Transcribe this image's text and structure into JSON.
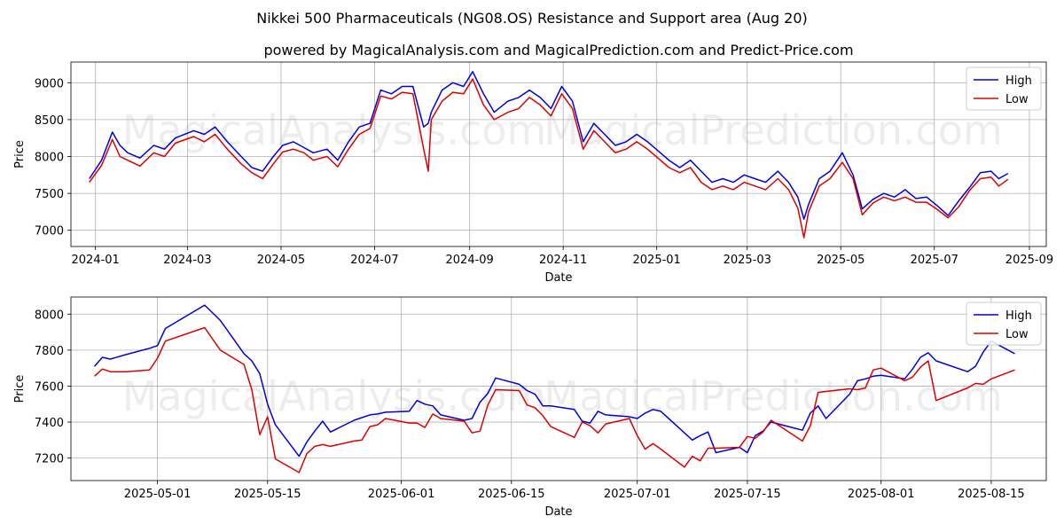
{
  "title": "Nikkei 500 Pharmaceuticals (NG08.OS) Resistance and Support area (Aug 20)",
  "subtitle": "powered by MagicalAnalysis.com and MagicalPrediction.com and Predict-Price.com",
  "watermarks": [
    "MagicalAnalysis.com",
    "MagicalPrediction.com"
  ],
  "colors": {
    "high": "#0000dd",
    "low": "#dd0000"
  },
  "chart_data": [
    {
      "type": "line",
      "xlabel": "Date",
      "ylabel": "Price",
      "xlim": [
        "2023-12-16",
        "2025-09-12"
      ],
      "ylim": [
        6780,
        9280
      ],
      "x_ticks": [
        "2024-01",
        "2024-03",
        "2024-05",
        "2024-07",
        "2024-09",
        "2024-11",
        "2025-01",
        "2025-03",
        "2025-05",
        "2025-07",
        "2025-09"
      ],
      "x_tick_dates": [
        "2024-01-01",
        "2024-03-01",
        "2024-05-01",
        "2024-07-01",
        "2024-09-01",
        "2024-11-01",
        "2025-01-01",
        "2025-03-01",
        "2025-05-01",
        "2025-07-01",
        "2025-09-01"
      ],
      "y_ticks": [
        7000,
        7500,
        8000,
        8500,
        9000
      ],
      "grid": true,
      "legend": "top-right",
      "series": [
        {
          "name": "High",
          "x": [
            "2023-12-28",
            "2024-01-05",
            "2024-01-12",
            "2024-01-17",
            "2024-01-22",
            "2024-01-30",
            "2024-02-08",
            "2024-02-15",
            "2024-02-22",
            "2024-03-05",
            "2024-03-12",
            "2024-03-19",
            "2024-03-27",
            "2024-04-05",
            "2024-04-12",
            "2024-04-19",
            "2024-04-26",
            "2024-05-02",
            "2024-05-09",
            "2024-05-16",
            "2024-05-22",
            "2024-05-31",
            "2024-06-07",
            "2024-06-14",
            "2024-06-21",
            "2024-06-28",
            "2024-07-05",
            "2024-07-12",
            "2024-07-19",
            "2024-07-26",
            "2024-08-02",
            "2024-08-05",
            "2024-08-07",
            "2024-08-14",
            "2024-08-21",
            "2024-08-28",
            "2024-09-03",
            "2024-09-10",
            "2024-09-17",
            "2024-09-26",
            "2024-10-03",
            "2024-10-10",
            "2024-10-17",
            "2024-10-24",
            "2024-10-31",
            "2024-11-07",
            "2024-11-14",
            "2024-11-21",
            "2024-11-28",
            "2024-12-05",
            "2024-12-12",
            "2024-12-19",
            "2024-12-26",
            "2025-01-09",
            "2025-01-16",
            "2025-01-23",
            "2025-01-30",
            "2025-02-06",
            "2025-02-13",
            "2025-02-20",
            "2025-02-27",
            "2025-03-06",
            "2025-03-13",
            "2025-03-21",
            "2025-03-28",
            "2025-04-03",
            "2025-04-07",
            "2025-04-10",
            "2025-04-17",
            "2025-04-24",
            "2025-05-02",
            "2025-05-09",
            "2025-05-15",
            "2025-05-22",
            "2025-05-29",
            "2025-06-05",
            "2025-06-12",
            "2025-06-19",
            "2025-06-26",
            "2025-07-03",
            "2025-07-10",
            "2025-07-17",
            "2025-07-24",
            "2025-07-31",
            "2025-08-07",
            "2025-08-12",
            "2025-08-18"
          ],
          "values": [
            7700,
            7950,
            8330,
            8150,
            8050,
            7980,
            8150,
            8100,
            8250,
            8350,
            8300,
            8400,
            8200,
            8000,
            7850,
            7800,
            8000,
            8150,
            8200,
            8120,
            8050,
            8100,
            7950,
            8200,
            8400,
            8450,
            8900,
            8850,
            8950,
            8950,
            8400,
            8450,
            8600,
            8900,
            9000,
            8950,
            9150,
            8850,
            8600,
            8750,
            8800,
            8900,
            8800,
            8650,
            8950,
            8750,
            8200,
            8450,
            8300,
            8150,
            8200,
            8300,
            8200,
            7950,
            7850,
            7950,
            7800,
            7650,
            7700,
            7650,
            7750,
            7700,
            7650,
            7800,
            7650,
            7450,
            7150,
            7350,
            7700,
            7800,
            8050,
            7750,
            7290,
            7420,
            7500,
            7450,
            7550,
            7430,
            7450,
            7330,
            7200,
            7400,
            7580,
            7780,
            7800,
            7700,
            7770
          ]
        },
        {
          "name": "Low",
          "x": [
            "2023-12-28",
            "2024-01-05",
            "2024-01-12",
            "2024-01-17",
            "2024-01-22",
            "2024-01-30",
            "2024-02-08",
            "2024-02-15",
            "2024-02-22",
            "2024-03-05",
            "2024-03-12",
            "2024-03-19",
            "2024-03-27",
            "2024-04-05",
            "2024-04-12",
            "2024-04-19",
            "2024-04-26",
            "2024-05-02",
            "2024-05-09",
            "2024-05-16",
            "2024-05-22",
            "2024-05-31",
            "2024-06-07",
            "2024-06-14",
            "2024-06-21",
            "2024-06-28",
            "2024-07-05",
            "2024-07-12",
            "2024-07-19",
            "2024-07-26",
            "2024-08-02",
            "2024-08-05",
            "2024-08-07",
            "2024-08-14",
            "2024-08-21",
            "2024-08-28",
            "2024-09-03",
            "2024-09-10",
            "2024-09-17",
            "2024-09-26",
            "2024-10-03",
            "2024-10-10",
            "2024-10-17",
            "2024-10-24",
            "2024-10-31",
            "2024-11-07",
            "2024-11-14",
            "2024-11-21",
            "2024-11-28",
            "2024-12-05",
            "2024-12-12",
            "2024-12-19",
            "2024-12-26",
            "2025-01-09",
            "2025-01-16",
            "2025-01-23",
            "2025-01-30",
            "2025-02-06",
            "2025-02-13",
            "2025-02-20",
            "2025-02-27",
            "2025-03-06",
            "2025-03-13",
            "2025-03-21",
            "2025-03-28",
            "2025-04-03",
            "2025-04-07",
            "2025-04-10",
            "2025-04-17",
            "2025-04-24",
            "2025-05-02",
            "2025-05-09",
            "2025-05-15",
            "2025-05-22",
            "2025-05-29",
            "2025-06-05",
            "2025-06-12",
            "2025-06-19",
            "2025-06-26",
            "2025-07-03",
            "2025-07-10",
            "2025-07-17",
            "2025-07-24",
            "2025-07-31",
            "2025-08-07",
            "2025-08-12",
            "2025-08-18"
          ],
          "values": [
            7650,
            7880,
            8230,
            8000,
            7950,
            7870,
            8050,
            8000,
            8180,
            8270,
            8200,
            8300,
            8100,
            7900,
            7780,
            7700,
            7900,
            8060,
            8100,
            8050,
            7950,
            8000,
            7860,
            8100,
            8300,
            8380,
            8820,
            8780,
            8870,
            8850,
            8100,
            7800,
            8500,
            8750,
            8870,
            8850,
            9050,
            8700,
            8500,
            8600,
            8650,
            8800,
            8700,
            8550,
            8850,
            8650,
            8100,
            8350,
            8200,
            8050,
            8100,
            8200,
            8100,
            7850,
            7780,
            7850,
            7650,
            7550,
            7600,
            7550,
            7650,
            7600,
            7550,
            7700,
            7550,
            7300,
            6900,
            7250,
            7600,
            7700,
            7920,
            7700,
            7210,
            7370,
            7450,
            7400,
            7450,
            7380,
            7380,
            7280,
            7170,
            7320,
            7540,
            7700,
            7720,
            7600,
            7690
          ]
        }
      ]
    },
    {
      "type": "line",
      "xlabel": "Date",
      "ylabel": "Price",
      "xlim": [
        "2025-04-20",
        "2025-08-22"
      ],
      "ylim": [
        7075,
        8095
      ],
      "x_ticks": [
        "2025-05-01",
        "2025-05-15",
        "2025-06-01",
        "2025-06-15",
        "2025-07-01",
        "2025-07-15",
        "2025-08-01",
        "2025-08-15"
      ],
      "y_ticks": [
        7200,
        7400,
        7600,
        7800,
        8000
      ],
      "grid": true,
      "legend": "top-right",
      "series": [
        {
          "name": "High",
          "x": [
            "2025-04-23",
            "2025-04-24",
            "2025-04-25",
            "2025-04-27",
            "2025-04-30",
            "2025-05-01",
            "2025-05-02",
            "2025-05-07",
            "2025-05-09",
            "2025-05-12",
            "2025-05-13",
            "2025-05-14",
            "2025-05-15",
            "2025-05-16",
            "2025-05-19",
            "2025-05-20",
            "2025-05-21",
            "2025-05-22",
            "2025-05-23",
            "2025-05-26",
            "2025-05-27",
            "2025-05-28",
            "2025-05-29",
            "2025-05-30",
            "2025-06-02",
            "2025-06-03",
            "2025-06-04",
            "2025-06-05",
            "2025-06-06",
            "2025-06-09",
            "2025-06-10",
            "2025-06-11",
            "2025-06-12",
            "2025-06-13",
            "2025-06-16",
            "2025-06-17",
            "2025-06-18",
            "2025-06-19",
            "2025-06-20",
            "2025-06-23",
            "2025-06-24",
            "2025-06-25",
            "2025-06-26",
            "2025-06-27",
            "2025-06-30",
            "2025-07-01",
            "2025-07-02",
            "2025-07-03",
            "2025-07-04",
            "2025-07-07",
            "2025-07-08",
            "2025-07-09",
            "2025-07-10",
            "2025-07-11",
            "2025-07-14",
            "2025-07-15",
            "2025-07-16",
            "2025-07-17",
            "2025-07-18",
            "2025-07-22",
            "2025-07-23",
            "2025-07-24",
            "2025-07-25",
            "2025-07-28",
            "2025-07-29",
            "2025-07-30",
            "2025-07-31",
            "2025-08-01",
            "2025-08-04",
            "2025-08-05",
            "2025-08-06",
            "2025-08-07",
            "2025-08-08",
            "2025-08-12",
            "2025-08-13",
            "2025-08-14",
            "2025-08-15",
            "2025-08-18"
          ],
          "values": [
            7710,
            7760,
            7750,
            7775,
            7810,
            7825,
            7920,
            8050,
            7965,
            7780,
            7740,
            7670,
            7500,
            7385,
            7210,
            7290,
            7350,
            7405,
            7345,
            7410,
            7425,
            7440,
            7445,
            7455,
            7460,
            7520,
            7500,
            7490,
            7440,
            7410,
            7420,
            7510,
            7560,
            7645,
            7610,
            7575,
            7555,
            7490,
            7490,
            7470,
            7405,
            7395,
            7460,
            7440,
            7430,
            7420,
            7450,
            7470,
            7460,
            7340,
            7300,
            7325,
            7345,
            7230,
            7260,
            7230,
            7325,
            7350,
            7400,
            7355,
            7450,
            7490,
            7420,
            7555,
            7630,
            7640,
            7655,
            7660,
            7640,
            7695,
            7760,
            7785,
            7740,
            7680,
            7710,
            7790,
            7850,
            7780
          ]
        },
        {
          "name": "Low",
          "x": [
            "2025-04-23",
            "2025-04-24",
            "2025-04-25",
            "2025-04-27",
            "2025-04-30",
            "2025-05-01",
            "2025-05-02",
            "2025-05-07",
            "2025-05-09",
            "2025-05-12",
            "2025-05-13",
            "2025-05-14",
            "2025-05-15",
            "2025-05-16",
            "2025-05-19",
            "2025-05-20",
            "2025-05-21",
            "2025-05-22",
            "2025-05-23",
            "2025-05-26",
            "2025-05-27",
            "2025-05-28",
            "2025-05-29",
            "2025-05-30",
            "2025-06-02",
            "2025-06-03",
            "2025-06-04",
            "2025-06-05",
            "2025-06-06",
            "2025-06-09",
            "2025-06-10",
            "2025-06-11",
            "2025-06-12",
            "2025-06-13",
            "2025-06-16",
            "2025-06-17",
            "2025-06-18",
            "2025-06-19",
            "2025-06-20",
            "2025-06-23",
            "2025-06-24",
            "2025-06-25",
            "2025-06-26",
            "2025-06-27",
            "2025-06-30",
            "2025-07-01",
            "2025-07-02",
            "2025-07-03",
            "2025-07-04",
            "2025-07-07",
            "2025-07-08",
            "2025-07-09",
            "2025-07-10",
            "2025-07-11",
            "2025-07-14",
            "2025-07-15",
            "2025-07-16",
            "2025-07-17",
            "2025-07-18",
            "2025-07-22",
            "2025-07-23",
            "2025-07-24",
            "2025-07-25",
            "2025-07-28",
            "2025-07-29",
            "2025-07-30",
            "2025-07-31",
            "2025-08-01",
            "2025-08-04",
            "2025-08-05",
            "2025-08-06",
            "2025-08-07",
            "2025-08-08",
            "2025-08-12",
            "2025-08-13",
            "2025-08-14",
            "2025-08-15",
            "2025-08-18"
          ],
          "values": [
            7655,
            7695,
            7680,
            7680,
            7690,
            7755,
            7850,
            7925,
            7800,
            7720,
            7580,
            7330,
            7430,
            7195,
            7120,
            7225,
            7265,
            7275,
            7265,
            7295,
            7300,
            7375,
            7385,
            7420,
            7395,
            7395,
            7370,
            7445,
            7420,
            7405,
            7340,
            7350,
            7495,
            7580,
            7575,
            7495,
            7480,
            7435,
            7375,
            7315,
            7400,
            7380,
            7340,
            7390,
            7420,
            7325,
            7250,
            7280,
            7250,
            7150,
            7210,
            7185,
            7255,
            7255,
            7260,
            7320,
            7310,
            7345,
            7410,
            7295,
            7380,
            7565,
            7570,
            7585,
            7580,
            7590,
            7690,
            7700,
            7630,
            7650,
            7705,
            7740,
            7520,
            7590,
            7615,
            7610,
            7640,
            7690
          ]
        }
      ]
    }
  ]
}
